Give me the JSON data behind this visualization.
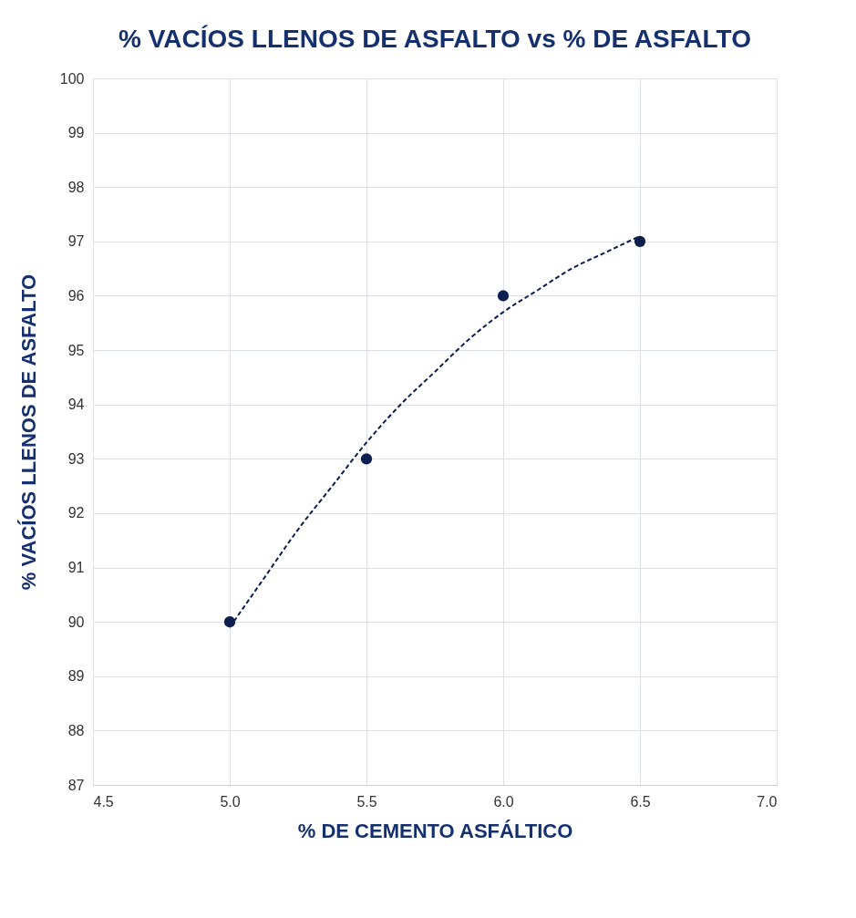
{
  "chart_data": {
    "type": "scatter",
    "title": "% VACÍOS LLENOS DE ASFALTO vs % DE ASFALTO",
    "xlabel": "% DE CEMENTO ASFÁLTICO",
    "ylabel": "% VACÍOS LLENOS DE ASFALTO",
    "xlim": [
      4.5,
      7.0
    ],
    "xticks": [
      {
        "value": 4.5,
        "label": "4.5"
      },
      {
        "value": 5.0,
        "label": "5.0"
      },
      {
        "value": 5.5,
        "label": "5.5"
      },
      {
        "value": 6.0,
        "label": "6.0"
      },
      {
        "value": 6.5,
        "label": "6.5"
      },
      {
        "value": 7.0,
        "label": "7.0"
      }
    ],
    "ylim": [
      87,
      100
    ],
    "yticks": [
      87,
      88,
      89,
      90,
      91,
      92,
      93,
      94,
      95,
      96,
      97,
      98,
      99,
      100
    ],
    "grid": true,
    "series": [
      {
        "color": "#0d1f4f",
        "marker": "circle",
        "x": [
          5.0,
          5.5,
          6.0,
          6.5
        ],
        "values": [
          90,
          93,
          96,
          97
        ]
      },
      {
        "type": "line",
        "color": "#0d1f4f",
        "line_style": "dashed",
        "x": [
          5.0,
          5.125,
          5.25,
          5.375,
          5.5,
          5.625,
          5.75,
          5.875,
          6.0,
          6.125,
          6.25,
          6.375,
          6.5
        ],
        "values": [
          89.9,
          90.8,
          91.7,
          92.5,
          93.3,
          94.0,
          94.6,
          95.2,
          95.7,
          96.1,
          96.5,
          96.8,
          97.1
        ]
      }
    ]
  }
}
